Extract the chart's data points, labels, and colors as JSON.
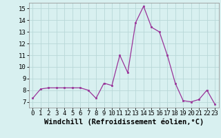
{
  "x": [
    0,
    1,
    2,
    3,
    4,
    5,
    6,
    7,
    8,
    9,
    10,
    11,
    12,
    13,
    14,
    15,
    16,
    17,
    18,
    19,
    20,
    21,
    22,
    23
  ],
  "y": [
    7.3,
    8.1,
    8.2,
    8.2,
    8.2,
    8.2,
    8.2,
    8.0,
    7.3,
    8.6,
    8.4,
    11.0,
    9.5,
    13.8,
    15.2,
    13.4,
    13.0,
    11.0,
    8.6,
    7.1,
    7.0,
    7.2,
    8.0,
    6.8
  ],
  "line_color": "#993399",
  "marker": "s",
  "marker_size": 2,
  "bg_color": "#d8f0f0",
  "grid_color": "#b8d8d8",
  "xlabel": "Windchill (Refroidissement éolien,°C)",
  "xlim": [
    -0.5,
    23.5
  ],
  "ylim": [
    6.5,
    15.5
  ],
  "yticks": [
    7,
    8,
    9,
    10,
    11,
    12,
    13,
    14,
    15
  ],
  "xticks": [
    0,
    1,
    2,
    3,
    4,
    5,
    6,
    7,
    8,
    9,
    10,
    11,
    12,
    13,
    14,
    15,
    16,
    17,
    18,
    19,
    20,
    21,
    22,
    23
  ],
  "tick_fontsize": 6.5,
  "xlabel_fontsize": 7.5,
  "lw": 0.9
}
